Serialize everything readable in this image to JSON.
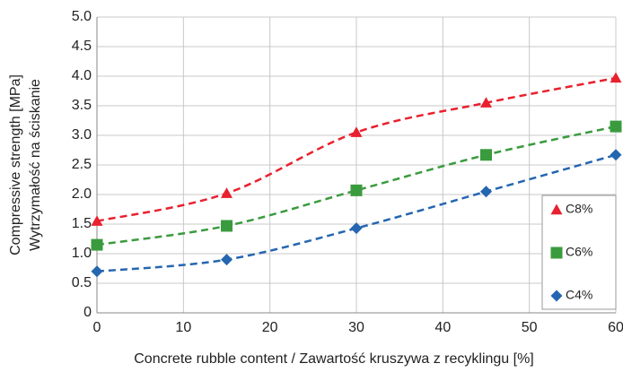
{
  "chart_data": {
    "type": "scatter",
    "xlabel": "Concrete rubble content / Zawartość kruszywa z recyklingu [%]",
    "ylabel": [
      "Compressive strength [MPa]",
      "Wytrzymałość  na ściskanie"
    ],
    "x": [
      0,
      15,
      30,
      45,
      60
    ],
    "series": [
      {
        "name": "C8%",
        "color": "#e8212e",
        "marker": "triangle",
        "values": [
          1.55,
          2.02,
          3.05,
          3.55,
          3.97
        ]
      },
      {
        "name": "C6%",
        "color": "#3a9b3e",
        "marker": "square",
        "values": [
          1.15,
          1.47,
          2.07,
          2.67,
          3.15
        ]
      },
      {
        "name": "C4%",
        "color": "#2566b0",
        "marker": "diamond",
        "values": [
          0.7,
          0.9,
          1.43,
          2.05,
          2.67
        ]
      }
    ],
    "xlim": [
      0,
      60
    ],
    "xticks": [
      0,
      10,
      20,
      30,
      40,
      50,
      60
    ],
    "ylim": [
      0,
      5
    ],
    "yticks": [
      0,
      0.5,
      {
        "value": 1,
        "label": "1.0"
      },
      1.5,
      {
        "value": 2,
        "label": "2.0"
      },
      2.5,
      {
        "value": 3,
        "label": "3.0"
      },
      3.5,
      {
        "value": 4,
        "label": "4.0"
      },
      4.5,
      {
        "value": 5,
        "label": "5.0"
      }
    ],
    "grid": true,
    "legend": "lower right"
  }
}
